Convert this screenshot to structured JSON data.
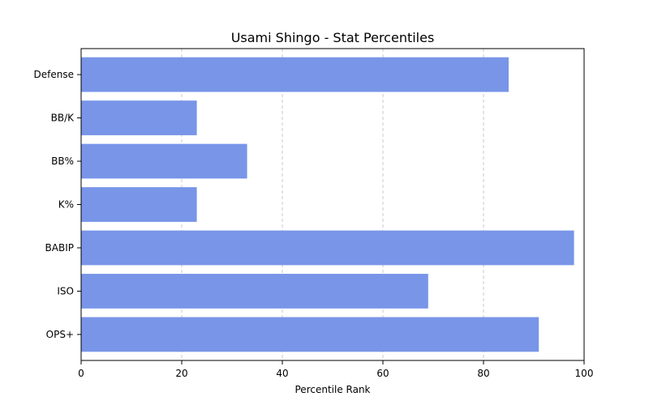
{
  "chart_data": {
    "type": "bar",
    "orientation": "horizontal",
    "title": "Usami Shingo - Stat Percentiles",
    "xlabel": "Percentile Rank",
    "ylabel": "",
    "xlim": [
      0,
      100
    ],
    "xticks": [
      0,
      20,
      40,
      60,
      80,
      100
    ],
    "categories": [
      "Defense",
      "BB/K",
      "BB%",
      "K%",
      "BABIP",
      "ISO",
      "OPS+"
    ],
    "values": [
      85,
      23,
      33,
      23,
      98,
      69,
      91
    ],
    "bar_color": "#7895e8",
    "grid": "x-dashed"
  }
}
